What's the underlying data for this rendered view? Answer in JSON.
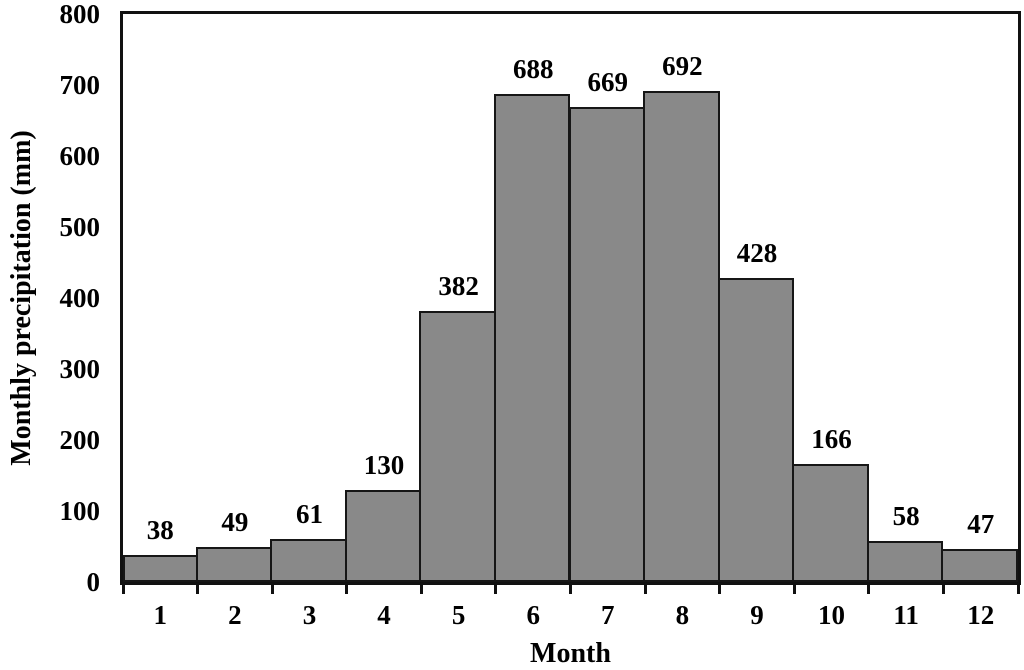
{
  "chart_data": {
    "type": "bar",
    "title": "",
    "xlabel": "Month",
    "ylabel": "Monthly precipitation (mm)",
    "categories": [
      "1",
      "2",
      "3",
      "4",
      "5",
      "6",
      "7",
      "8",
      "9",
      "10",
      "11",
      "12"
    ],
    "values": [
      38,
      49,
      61,
      130,
      382,
      688,
      669,
      692,
      428,
      166,
      58,
      47
    ],
    "value_labels": [
      "38",
      "49",
      "61",
      "130",
      "382",
      "688",
      "669",
      "692",
      "428",
      "166",
      "58",
      "47"
    ],
    "yticks": [
      0,
      100,
      200,
      300,
      400,
      500,
      600,
      700,
      800
    ],
    "ylim": [
      0,
      800
    ],
    "grid": false,
    "legend": null,
    "bar_fill_color": "#898989",
    "bar_border_color": "#161616",
    "axis_color": "#111111"
  }
}
